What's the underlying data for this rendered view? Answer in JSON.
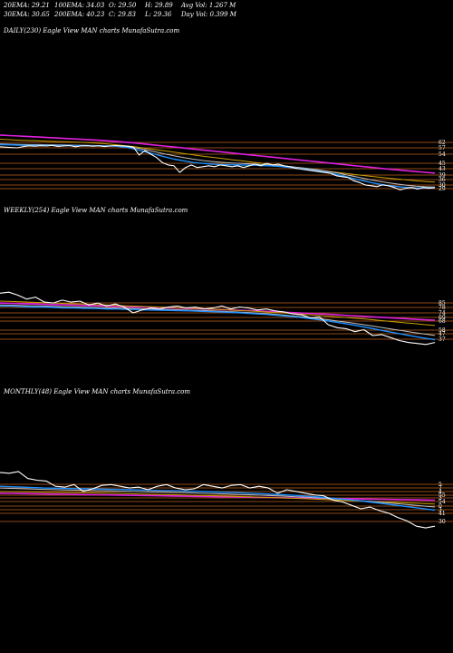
{
  "header": {
    "row1": [
      {
        "label": "20EMA:",
        "value": "29.21"
      },
      {
        "label": "100EMA:",
        "value": "34.03"
      },
      {
        "label": "O:",
        "value": "29.50"
      },
      {
        "label": "H:",
        "value": "29.89"
      },
      {
        "label": "Avg Vol:",
        "value": "1.267 M"
      }
    ],
    "row2": [
      {
        "label": "30EMA:",
        "value": "30.65"
      },
      {
        "label": "200EMA:",
        "value": "40.23"
      },
      {
        "label": "C:",
        "value": "29.83"
      },
      {
        "label": "L:",
        "value": "29.36"
      },
      {
        "label": "Day Vol:",
        "value": "0.399 M"
      }
    ]
  },
  "colors": {
    "background": "#000000",
    "price": "#ffffff",
    "ema_short": "#1e90ff",
    "ema_long": "#e020e0",
    "ema_mid": "#c0c0c0",
    "ema_gold": "#c8a000",
    "levels": "#c0601a"
  },
  "chart_data": [
    {
      "type": "line",
      "title": "DAILY(230) Eagle   View  MAN  charts MunafaSutra.com",
      "level_labels": [
        "62",
        "57",
        "54",
        "45",
        "43",
        "39",
        "36",
        "30",
        "29"
      ],
      "series": [
        {
          "role": "price",
          "values": [
            56.5,
            56.2,
            56.0,
            55.8,
            56.6,
            57.0,
            56.8,
            57.1,
            56.9,
            57.3,
            56.7,
            57.0,
            57.2,
            56.5,
            57.0,
            57.1,
            56.8,
            57.0,
            56.6,
            56.9,
            57.2,
            57.0,
            56.8,
            56.3,
            51.5,
            54.2,
            52.0,
            50.0,
            47.0,
            45.5,
            45.0,
            41.0,
            44.0,
            45.5,
            44.0,
            44.5,
            45.0,
            44.5,
            45.5,
            45.0,
            44.5,
            45.0,
            44.0,
            45.0,
            46.0,
            45.0,
            46.5,
            45.5,
            46.0,
            45.0,
            44.5,
            43.5,
            43.0,
            42.5,
            42.0,
            41.5,
            41.0,
            40.5,
            39.0,
            38.5,
            38.0,
            36.0,
            35.0,
            33.5,
            33.0,
            32.5,
            33.5,
            33.0,
            32.0,
            30.5,
            31.5,
            32.0,
            31.0,
            32.0,
            31.5,
            31.8
          ]
        },
        {
          "role": "ema20",
          "values": [
            57.8,
            57.6,
            57.4,
            57.3,
            57.3,
            57.3,
            57.2,
            57.2,
            57.1,
            57.1,
            57.0,
            57.0,
            56.8,
            56.2,
            55.0,
            53.5,
            52.0,
            50.5,
            49.0,
            48.0,
            47.0,
            46.5,
            46.0,
            45.8,
            45.6,
            45.5,
            45.4,
            45.2,
            45.0,
            44.6,
            44.0,
            43.4,
            42.6,
            41.8,
            40.8,
            39.6,
            38.2,
            36.8,
            35.5,
            34.2,
            33.3,
            32.6,
            32.0,
            31.7,
            31.6,
            31.8
          ]
        },
        {
          "role": "ema30",
          "values": [
            58.2,
            58.0,
            57.9,
            57.8,
            57.8,
            57.7,
            57.6,
            57.5,
            57.4,
            57.3,
            57.2,
            57.1,
            57.0,
            56.6,
            55.8,
            54.8,
            53.5,
            52.2,
            51.0,
            50.0,
            49.0,
            48.2,
            47.6,
            47.1,
            46.7,
            46.4,
            46.1,
            45.8,
            45.5,
            45.1,
            44.6,
            44.0,
            43.3,
            42.5,
            41.6,
            40.6,
            39.4,
            38.2,
            37.0,
            35.9,
            35.0,
            34.1,
            33.4,
            32.8,
            32.4,
            32.2
          ]
        },
        {
          "role": "ema100",
          "values": [
            61.0,
            60.7,
            60.4,
            60.2,
            60.0,
            59.8,
            59.6,
            59.4,
            59.2,
            58.9,
            58.6,
            58.2,
            57.7,
            57.1,
            56.4,
            55.6,
            54.8,
            54.0,
            53.2,
            52.4,
            51.6,
            50.8,
            50.1,
            49.4,
            48.7,
            48.0,
            47.3,
            46.6,
            45.9,
            45.2,
            44.5,
            43.8,
            43.1,
            42.4,
            41.7,
            41.0,
            40.3,
            39.6,
            38.9,
            38.3,
            37.7,
            37.1,
            36.6,
            36.1,
            35.6,
            35.2
          ]
        },
        {
          "role": "ema200",
          "values": [
            63.5,
            63.2,
            62.9,
            62.6,
            62.3,
            62.0,
            61.7,
            61.4,
            61.1,
            60.8,
            60.5,
            60.1,
            59.7,
            59.2,
            58.7,
            58.1,
            57.5,
            56.9,
            56.3,
            55.7,
            55.1,
            54.5,
            53.9,
            53.3,
            52.7,
            52.1,
            51.5,
            50.9,
            50.3,
            49.7,
            49.1,
            48.5,
            47.9,
            47.3,
            46.7,
            46.1,
            45.5,
            44.9,
            44.3,
            43.7,
            43.1,
            42.6,
            42.1,
            41.6,
            41.1,
            40.6
          ]
        }
      ]
    },
    {
      "type": "line",
      "title": "WEEKLY(254) Eagle   View  MAN  charts MunafaSutra.com",
      "level_labels": [
        "85",
        "78",
        "74",
        "69",
        "68",
        "58",
        "47",
        "37"
      ],
      "series": [
        {
          "role": "price",
          "values": [
            92,
            93,
            90,
            86,
            88,
            83,
            82,
            85,
            83,
            84,
            80,
            82,
            79,
            81,
            78,
            72,
            75,
            77,
            76,
            78,
            79,
            77,
            78,
            76,
            77,
            79,
            76,
            78,
            77,
            75,
            76,
            74,
            73,
            71,
            70,
            67,
            68,
            60,
            57,
            56,
            53,
            55,
            49,
            50,
            47,
            44,
            42,
            41,
            40,
            42
          ]
        },
        {
          "role": "ema20",
          "values": [
            79,
            79,
            78.5,
            78,
            78,
            77.5,
            77,
            77,
            76.5,
            76.5,
            76,
            76,
            75.5,
            75.5,
            75,
            74.8,
            74.5,
            74.2,
            74,
            73.6,
            73.2,
            72.8,
            72.4,
            71.8,
            71.2,
            70.5,
            69.7,
            68.8,
            67.8,
            66.6,
            65.2,
            63.7,
            62.1,
            60.3,
            58.4,
            56.4,
            54.3,
            52.2,
            50.2,
            48.3,
            46.5,
            44.9
          ]
        },
        {
          "role": "ema30",
          "values": [
            80,
            79.8,
            79.5,
            79.2,
            79,
            78.7,
            78.4,
            78.1,
            77.8,
            77.5,
            77.2,
            76.9,
            76.6,
            76.3,
            76,
            75.7,
            75.4,
            75.1,
            74.8,
            74.4,
            74,
            73.6,
            73.1,
            72.6,
            72,
            71.3,
            70.5,
            69.6,
            68.6,
            67.5,
            66.3,
            65,
            63.6,
            62.1,
            60.5,
            58.9,
            57.2,
            55.5,
            53.8,
            52.2,
            50.6,
            49.1
          ]
        },
        {
          "role": "ema100",
          "values": [
            84,
            83.6,
            83.2,
            82.8,
            82.4,
            82,
            81.6,
            81.2,
            80.8,
            80.4,
            80,
            79.6,
            79.2,
            78.8,
            78.4,
            78,
            77.6,
            77.2,
            76.8,
            76.3,
            75.8,
            75.3,
            74.8,
            74.2,
            73.6,
            73,
            72.4,
            71.7,
            71,
            70.3,
            69.5,
            68.7,
            67.9,
            67,
            66.1,
            65.2,
            64.2,
            63.2,
            62.2,
            61.2,
            60.2,
            59.2
          ]
        },
        {
          "role": "ema200",
          "values": [
            82,
            81.7,
            81.4,
            81.1,
            80.8,
            80.5,
            80.2,
            79.9,
            79.6,
            79.3,
            79,
            78.7,
            78.4,
            78.1,
            77.8,
            77.5,
            77.2,
            76.9,
            76.5,
            76.1,
            75.7,
            75.3,
            74.9,
            74.5,
            74.1,
            73.6,
            73.1,
            72.6,
            72.1,
            71.6,
            71.1,
            70.5,
            69.9,
            69.3,
            68.7,
            68.1,
            67.5,
            66.9,
            66.3,
            65.7,
            65.1,
            64.6
          ]
        }
      ]
    },
    {
      "type": "line",
      "title": "MONTHLY(48) Eagle   View  MAN  charts MunafaSutra.com",
      "level_labels": [
        "5",
        "7",
        "4",
        "55",
        "3",
        "54",
        "0",
        "3",
        "41",
        "30"
      ],
      "series": [
        {
          "role": "price",
          "values": [
            102,
            101,
            103,
            95,
            93,
            92,
            86,
            85,
            88,
            80,
            83,
            87,
            88,
            86,
            84,
            85,
            82,
            86,
            88,
            84,
            82,
            83,
            88,
            86,
            84,
            87,
            88,
            84,
            86,
            84,
            78,
            82,
            80,
            78,
            76,
            75,
            70,
            68,
            64,
            60,
            62,
            58,
            55,
            50,
            46,
            40,
            38,
            40
          ]
        },
        {
          "role": "ema20",
          "values": [
            86,
            85.5,
            85,
            84.5,
            84,
            83.8,
            83.5,
            83.3,
            83,
            82.8,
            82.5,
            82.3,
            82,
            81.7,
            81.4,
            81.1,
            80.8,
            80.5,
            80.2,
            79.8,
            79.4,
            79,
            78.5,
            78,
            77.5,
            76.9,
            76.3,
            75.6,
            74.8,
            73.9,
            72.9,
            71.8,
            70.6,
            69.3,
            67.9,
            66.4,
            64.9,
            63.3,
            61.7,
            60.1,
            58.5
          ]
        },
        {
          "role": "ema30",
          "values": [
            84,
            83.6,
            83.2,
            82.8,
            82.4,
            82.1,
            81.8,
            81.5,
            81.2,
            80.9,
            80.6,
            80.3,
            80,
            79.7,
            79.4,
            79.1,
            78.8,
            78.5,
            78.2,
            77.8,
            77.4,
            77,
            76.6,
            76.2,
            75.7,
            75.2,
            74.7,
            74.1,
            73.5,
            72.8,
            72.1,
            71.3,
            70.5,
            69.6,
            68.6,
            67.6,
            66.5,
            65.4,
            64.3,
            63.2,
            62.1
          ]
        },
        {
          "role": "ema100",
          "values": [
            80,
            79.8,
            79.6,
            79.4,
            79.2,
            79,
            78.8,
            78.6,
            78.4,
            78.2,
            78,
            77.7,
            77.4,
            77.1,
            76.8,
            76.5,
            76.2,
            75.9,
            75.6,
            75.3,
            75,
            74.6,
            74.2,
            73.8,
            73.4,
            73,
            72.6,
            72.1,
            71.6,
            71.1,
            70.6,
            70.1,
            69.6,
            69.1,
            68.6,
            68.1,
            67.6,
            67.1,
            66.6,
            66.1,
            65.6
          ]
        },
        {
          "role": "ema200",
          "values": [
            78,
            77.8,
            77.6,
            77.4,
            77.2,
            77,
            76.8,
            76.6,
            76.4,
            76.2,
            76,
            75.8,
            75.6,
            75.4,
            75.2,
            75,
            74.8,
            74.6,
            74.4,
            74.2,
            74,
            73.8,
            73.6,
            73.4,
            73.2,
            73,
            72.8,
            72.6,
            72.4,
            72.2,
            72,
            71.8,
            71.6,
            71.4,
            71.2,
            71,
            70.8,
            70.6,
            70.4,
            70.2,
            70
          ]
        }
      ]
    }
  ]
}
